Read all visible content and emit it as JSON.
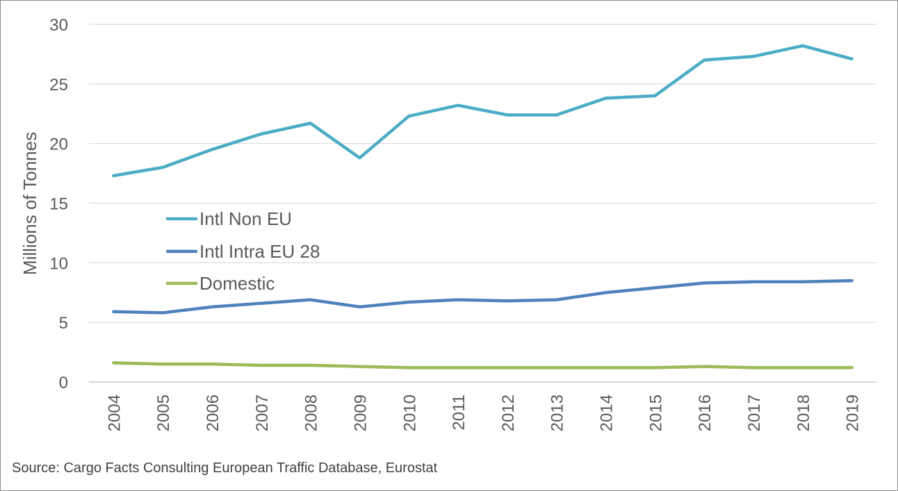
{
  "chart_data": {
    "type": "line",
    "ylabel": "Millions of Tonnes",
    "xlabel": "",
    "ylim": [
      0,
      30
    ],
    "yticks": [
      "0",
      "5",
      "10",
      "15",
      "20",
      "25",
      "30"
    ],
    "grid": true,
    "legend_position": "center-left",
    "categories": [
      "2004",
      "2005",
      "2006",
      "2007",
      "2008",
      "2009",
      "2010",
      "2011",
      "2012",
      "2013",
      "2014",
      "2015",
      "2016",
      "2017",
      "2018",
      "2019"
    ],
    "series": [
      {
        "name": "Intl Non EU",
        "color": "#4bacc6",
        "values": [
          17.3,
          18.0,
          19.5,
          20.8,
          21.7,
          18.8,
          22.3,
          23.2,
          22.4,
          22.4,
          23.8,
          24.0,
          27.0,
          27.3,
          28.2,
          27.1
        ]
      },
      {
        "name": "Intl Intra EU 28",
        "color": "#4f81bd",
        "values": [
          5.9,
          5.8,
          6.3,
          6.6,
          6.9,
          6.3,
          6.7,
          6.9,
          6.8,
          6.9,
          7.5,
          7.9,
          8.3,
          8.4,
          8.4,
          8.5
        ]
      },
      {
        "name": "Domestic",
        "color": "#9bbb59",
        "values": [
          1.6,
          1.5,
          1.5,
          1.4,
          1.4,
          1.3,
          1.2,
          1.2,
          1.2,
          1.2,
          1.2,
          1.2,
          1.3,
          1.2,
          1.2,
          1.2
        ]
      }
    ]
  },
  "source": "Source: Cargo Facts Consulting European Traffic Database, Eurostat",
  "colors": {
    "gridline": "#d9d9d9",
    "axis_line": "#bfbfbf",
    "text": "#595959",
    "border": "#8c8c8c"
  }
}
